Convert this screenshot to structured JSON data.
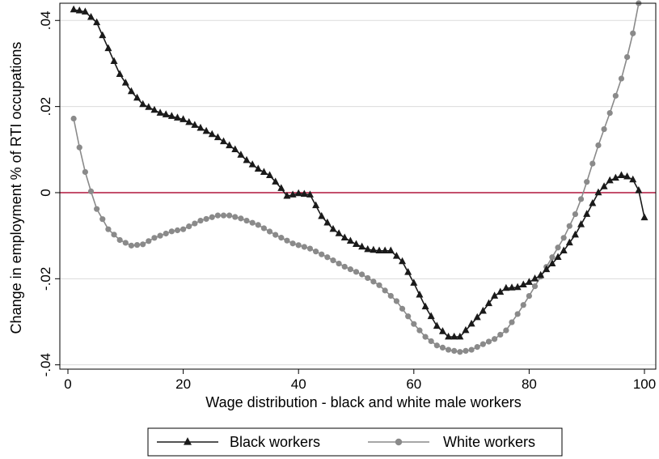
{
  "chart_data": {
    "type": "line",
    "xlabel": "Wage distribution - black and white male workers",
    "ylabel": "Change in employment % of RTI occupations",
    "xlim": [
      0,
      100
    ],
    "ylim": [
      -0.041,
      0.044
    ],
    "x_ticks": [
      0,
      20,
      40,
      60,
      80,
      100
    ],
    "x_tick_labels": [
      "0",
      "20",
      "40",
      "60",
      "80",
      "100"
    ],
    "y_ticks": [
      -0.04,
      -0.02,
      0,
      0.02,
      0.04
    ],
    "y_tick_labels": [
      "-.04",
      "-.02",
      "0",
      ".02",
      ".04"
    ],
    "grid": true,
    "reference_line": {
      "y": 0,
      "color": "#b0163c"
    },
    "legend": "bottom",
    "series": [
      {
        "name": "Black workers",
        "marker": "triangle",
        "color": "#1a1a1a",
        "anchors": [
          [
            1,
            0.0425
          ],
          [
            3,
            0.042
          ],
          [
            5,
            0.0395
          ],
          [
            7,
            0.0335
          ],
          [
            9,
            0.0275
          ],
          [
            11,
            0.0235
          ],
          [
            13,
            0.0205
          ],
          [
            16,
            0.0185
          ],
          [
            20,
            0.017
          ],
          [
            23,
            0.015
          ],
          [
            26,
            0.0128
          ],
          [
            29,
            0.01
          ],
          [
            31,
            0.0075
          ],
          [
            33,
            0.0055
          ],
          [
            35,
            0.004
          ],
          [
            37,
            0.001
          ],
          [
            38,
            -0.0008
          ],
          [
            40,
            -0.0002
          ],
          [
            42,
            -0.0005
          ],
          [
            44,
            -0.0055
          ],
          [
            46,
            -0.0085
          ],
          [
            48,
            -0.0105
          ],
          [
            50,
            -0.012
          ],
          [
            52,
            -0.0132
          ],
          [
            54,
            -0.0135
          ],
          [
            56,
            -0.0135
          ],
          [
            58,
            -0.016
          ],
          [
            60,
            -0.021
          ],
          [
            62,
            -0.0265
          ],
          [
            64,
            -0.031
          ],
          [
            66,
            -0.0335
          ],
          [
            68,
            -0.0335
          ],
          [
            70,
            -0.0305
          ],
          [
            72,
            -0.0275
          ],
          [
            74,
            -0.024
          ],
          [
            76,
            -0.0222
          ],
          [
            78,
            -0.022
          ],
          [
            80,
            -0.0208
          ],
          [
            82,
            -0.0192
          ],
          [
            84,
            -0.0165
          ],
          [
            86,
            -0.0135
          ],
          [
            88,
            -0.0098
          ],
          [
            90,
            -0.005
          ],
          [
            92,
            0.0
          ],
          [
            94,
            0.0028
          ],
          [
            96,
            0.004
          ],
          [
            97,
            0.0037
          ],
          [
            98,
            0.003
          ],
          [
            99,
            0.0005
          ],
          [
            100,
            -0.0058
          ]
        ]
      },
      {
        "name": "White workers",
        "marker": "circle",
        "color": "#8a8a8a",
        "anchors": [
          [
            1,
            0.0172
          ],
          [
            2,
            0.0105
          ],
          [
            3,
            0.0048
          ],
          [
            4,
            0.0003
          ],
          [
            5,
            -0.0038
          ],
          [
            7,
            -0.0085
          ],
          [
            9,
            -0.011
          ],
          [
            11,
            -0.0123
          ],
          [
            13,
            -0.012
          ],
          [
            15,
            -0.0105
          ],
          [
            18,
            -0.009
          ],
          [
            20,
            -0.0085
          ],
          [
            23,
            -0.0065
          ],
          [
            26,
            -0.0053
          ],
          [
            28,
            -0.0053
          ],
          [
            30,
            -0.006
          ],
          [
            33,
            -0.0075
          ],
          [
            36,
            -0.0098
          ],
          [
            39,
            -0.0118
          ],
          [
            42,
            -0.013
          ],
          [
            45,
            -0.015
          ],
          [
            48,
            -0.0172
          ],
          [
            51,
            -0.019
          ],
          [
            54,
            -0.0215
          ],
          [
            57,
            -0.0252
          ],
          [
            60,
            -0.0305
          ],
          [
            62,
            -0.0335
          ],
          [
            64,
            -0.0355
          ],
          [
            66,
            -0.0365
          ],
          [
            68,
            -0.037
          ],
          [
            70,
            -0.0365
          ],
          [
            72,
            -0.0352
          ],
          [
            74,
            -0.034
          ],
          [
            76,
            -0.032
          ],
          [
            78,
            -0.0282
          ],
          [
            80,
            -0.024
          ],
          [
            82,
            -0.0195
          ],
          [
            84,
            -0.015
          ],
          [
            86,
            -0.0105
          ],
          [
            88,
            -0.005
          ],
          [
            89,
            -0.0015
          ],
          [
            90,
            0.0025
          ],
          [
            92,
            0.011
          ],
          [
            94,
            0.0185
          ],
          [
            96,
            0.0265
          ],
          [
            97,
            0.0315
          ],
          [
            98,
            0.037
          ],
          [
            99,
            0.044
          ]
        ]
      }
    ]
  }
}
